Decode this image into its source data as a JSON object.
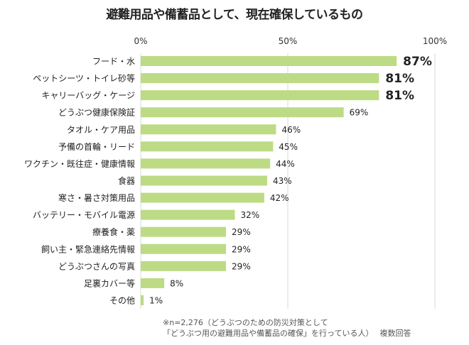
{
  "chart_data": {
    "type": "bar",
    "orientation": "horizontal",
    "title": "避難用品や備蓄品として、現在確保しているもの",
    "categories": [
      "フード・水",
      "ペットシーツ・トイレ砂等",
      "キャリーバッグ・ケージ",
      "どうぶつ健康保険証",
      "タオル・ケア用品",
      "予備の首輪・リード",
      "ワクチン・既往症・健康情報",
      "食器",
      "寒さ・暑さ対策用品",
      "バッテリー・モバイル電源",
      "療養食・薬",
      "飼い主・緊急連絡先情報",
      "どうぶつさんの写真",
      "足裏カバー等",
      "その他"
    ],
    "values": [
      87,
      81,
      81,
      69,
      46,
      45,
      44,
      43,
      42,
      32,
      29,
      29,
      29,
      8,
      1
    ],
    "data_labels": [
      "87%",
      "81%",
      "81%",
      "69%",
      "46%",
      "45%",
      "44%",
      "43%",
      "42%",
      "32%",
      "29%",
      "29%",
      "29%",
      "8%",
      "1%"
    ],
    "highlighted_labels": [
      0,
      1,
      2
    ],
    "xlim": [
      0,
      100
    ],
    "x_ticks": [
      "0%",
      "50%",
      "100%"
    ],
    "x_tick_values": [
      0,
      50,
      100
    ],
    "axis_position": "top",
    "grid": true,
    "bar_color": "#bddb84",
    "grid_color": "#d9d9d9"
  },
  "footnote": {
    "line1": "※n=2,276（どうぶつのための防災対策として",
    "line2": "「どうぶつ用の避難用品や備蓄品の確保」を行っている人）　 複数回答"
  }
}
